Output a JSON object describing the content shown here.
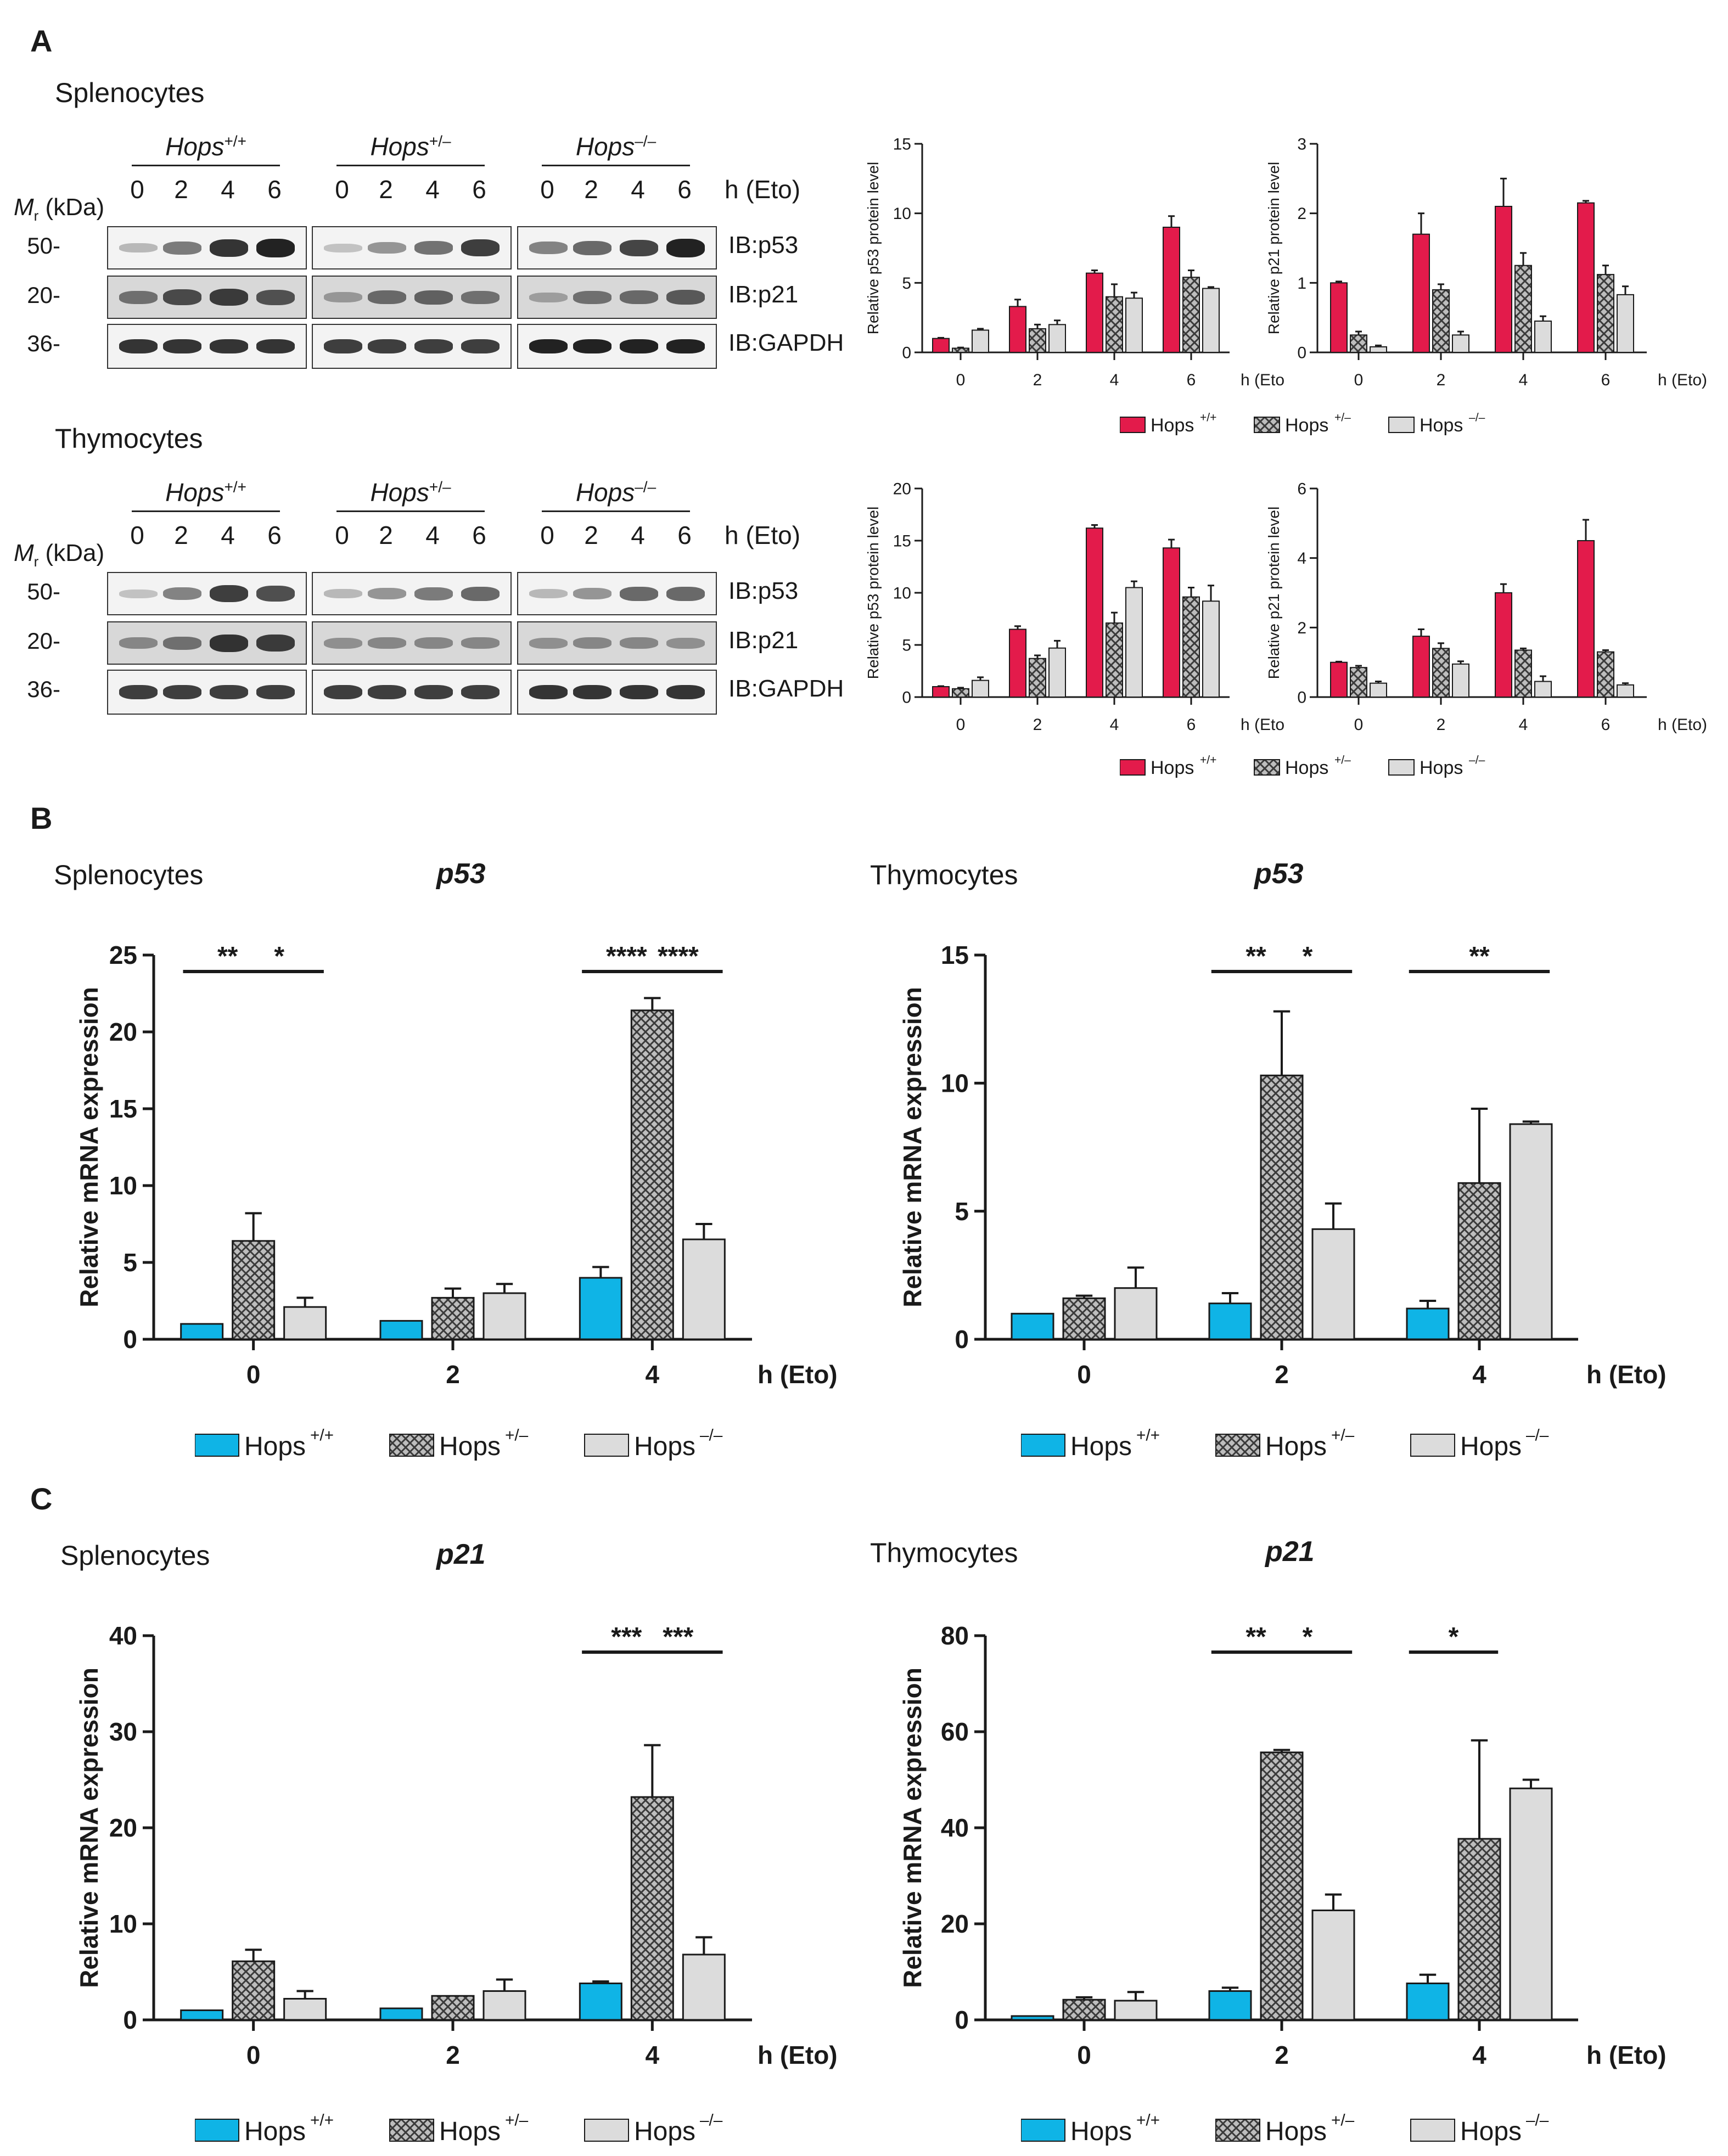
{
  "panels": {
    "A": {
      "letter": "A"
    },
    "B": {
      "letter": "B"
    },
    "C": {
      "letter": "C"
    }
  },
  "blots": {
    "mr_label": "M",
    "mr_sub": "r",
    "mr_unit": " (kDa)",
    "time_unit": "h (Eto)",
    "time_points": [
      "0",
      "2",
      "4",
      "6"
    ],
    "groups": [
      {
        "base": "Hops",
        "sup": "+/+"
      },
      {
        "base": "Hops",
        "sup": "+/–"
      },
      {
        "base": "Hops",
        "sup": "–/–"
      }
    ],
    "rows": [
      {
        "mw": "50-",
        "ib": "IB:p53"
      },
      {
        "mw": "20-",
        "ib": "IB:p21"
      },
      {
        "mw": "36-",
        "ib": "IB:GAPDH"
      }
    ],
    "sections": [
      {
        "title": "Splenocytes"
      },
      {
        "title": "Thymocytes"
      }
    ]
  },
  "legend": {
    "base": "Hops",
    "sups": [
      "+/+",
      "+/–",
      "–/–"
    ]
  },
  "colors": {
    "wt_protein": "#e31b4b",
    "wt_mrna": "#0fb4e6",
    "het": "#9a9a9a",
    "ko": "#dcdcdc",
    "axis": "#1a1a1a"
  },
  "chart_data": [
    {
      "id": "A_spl_p53",
      "type": "bar",
      "title": "",
      "ylabel": "Relative p53 protein level",
      "xlabel": "h (Eto)",
      "categories": [
        "0",
        "2",
        "4",
        "6"
      ],
      "ylim": [
        0,
        15
      ],
      "yticks": [
        0,
        5,
        10,
        15
      ],
      "series": [
        {
          "name": "Hops +/+",
          "values": [
            1.0,
            3.3,
            5.7,
            9.0
          ],
          "errors": [
            0.05,
            0.5,
            0.2,
            0.8
          ]
        },
        {
          "name": "Hops +/–",
          "values": [
            0.3,
            1.7,
            4.0,
            5.4
          ],
          "errors": [
            0.05,
            0.3,
            0.9,
            0.5
          ]
        },
        {
          "name": "Hops –/–",
          "values": [
            1.6,
            2.0,
            3.9,
            4.6
          ],
          "errors": [
            0.1,
            0.3,
            0.4,
            0.1
          ]
        }
      ]
    },
    {
      "id": "A_spl_p21",
      "type": "bar",
      "title": "",
      "ylabel": "Relative p21 protein level",
      "xlabel": "h (Eto)",
      "categories": [
        "0",
        "2",
        "4",
        "6"
      ],
      "ylim": [
        0,
        3
      ],
      "yticks": [
        0,
        1,
        2,
        3
      ],
      "series": [
        {
          "name": "Hops +/+",
          "values": [
            1.0,
            1.7,
            2.1,
            2.15
          ],
          "errors": [
            0.02,
            0.3,
            0.4,
            0.03
          ]
        },
        {
          "name": "Hops +/–",
          "values": [
            0.25,
            0.9,
            1.25,
            1.12
          ],
          "errors": [
            0.05,
            0.08,
            0.18,
            0.13
          ]
        },
        {
          "name": "Hops –/–",
          "values": [
            0.08,
            0.25,
            0.45,
            0.83
          ],
          "errors": [
            0.02,
            0.05,
            0.07,
            0.12
          ]
        }
      ]
    },
    {
      "id": "A_thy_p53",
      "type": "bar",
      "title": "",
      "ylabel": "Relative p53 protein level",
      "xlabel": "h (Eto)",
      "categories": [
        "0",
        "2",
        "4",
        "6"
      ],
      "ylim": [
        0,
        20
      ],
      "yticks": [
        0,
        5,
        10,
        15,
        20
      ],
      "series": [
        {
          "name": "Hops +/+",
          "values": [
            1.0,
            6.5,
            16.2,
            14.3
          ],
          "errors": [
            0.05,
            0.3,
            0.3,
            0.8
          ]
        },
        {
          "name": "Hops +/–",
          "values": [
            0.8,
            3.7,
            7.1,
            9.6
          ],
          "errors": [
            0.1,
            0.3,
            1.0,
            0.9
          ]
        },
        {
          "name": "Hops –/–",
          "values": [
            1.6,
            4.7,
            10.5,
            9.2
          ],
          "errors": [
            0.3,
            0.7,
            0.6,
            1.5
          ]
        }
      ]
    },
    {
      "id": "A_thy_p21",
      "type": "bar",
      "title": "",
      "ylabel": "Relative p21 protein level",
      "xlabel": "h (Eto)",
      "categories": [
        "0",
        "2",
        "4",
        "6"
      ],
      "ylim": [
        0,
        6
      ],
      "yticks": [
        0,
        2,
        4,
        6
      ],
      "series": [
        {
          "name": "Hops +/+",
          "values": [
            1.0,
            1.75,
            3.0,
            4.5
          ],
          "errors": [
            0.02,
            0.2,
            0.25,
            0.6
          ]
        },
        {
          "name": "Hops +/–",
          "values": [
            0.85,
            1.4,
            1.35,
            1.3
          ],
          "errors": [
            0.05,
            0.15,
            0.05,
            0.05
          ]
        },
        {
          "name": "Hops –/–",
          "values": [
            0.4,
            0.95,
            0.45,
            0.35
          ],
          "errors": [
            0.05,
            0.08,
            0.15,
            0.05
          ]
        }
      ]
    },
    {
      "id": "B_spl",
      "type": "bar",
      "title": "p53",
      "section": "Splenocytes",
      "ylabel": "Relative mRNA expression",
      "xlabel": "h (Eto)",
      "categories": [
        "0",
        "2",
        "4"
      ],
      "ylim": [
        0,
        25
      ],
      "yticks": [
        0,
        5,
        10,
        15,
        20,
        25
      ],
      "series": [
        {
          "name": "Hops +/+",
          "values": [
            1.0,
            1.2,
            4.0
          ],
          "errors": [
            0,
            0,
            0.7
          ]
        },
        {
          "name": "Hops +/–",
          "values": [
            6.4,
            2.7,
            21.4
          ],
          "errors": [
            1.8,
            0.6,
            0.8
          ]
        },
        {
          "name": "Hops –/–",
          "values": [
            2.1,
            3.0,
            6.5
          ],
          "errors": [
            0.6,
            0.6,
            1.0
          ]
        }
      ],
      "annotations": [
        {
          "text": "**",
          "from": [
            0,
            0
          ],
          "to": [
            0,
            1
          ]
        },
        {
          "text": "*",
          "from": [
            0,
            1
          ],
          "to": [
            0,
            2
          ]
        },
        {
          "text": "****",
          "from": [
            2,
            0
          ],
          "to": [
            2,
            1
          ]
        },
        {
          "text": "****",
          "from": [
            2,
            1
          ],
          "to": [
            2,
            2
          ]
        }
      ]
    },
    {
      "id": "B_thy",
      "type": "bar",
      "title": "p53",
      "section": "Thymocytes",
      "ylabel": "Relative mRNA expression",
      "xlabel": "h (Eto)",
      "categories": [
        "0",
        "2",
        "4"
      ],
      "ylim": [
        0,
        15
      ],
      "yticks": [
        0,
        5,
        10,
        15
      ],
      "series": [
        {
          "name": "Hops +/+",
          "values": [
            1.0,
            1.4,
            1.2
          ],
          "errors": [
            0,
            0.4,
            0.3
          ]
        },
        {
          "name": "Hops +/–",
          "values": [
            1.6,
            10.3,
            6.1
          ],
          "errors": [
            0.1,
            2.5,
            2.9
          ]
        },
        {
          "name": "Hops –/–",
          "values": [
            2.0,
            4.3,
            8.4
          ],
          "errors": [
            0.8,
            1.0,
            0.1
          ]
        }
      ],
      "annotations": [
        {
          "text": "**",
          "from": [
            1,
            0
          ],
          "to": [
            1,
            1
          ]
        },
        {
          "text": "*",
          "from": [
            1,
            1
          ],
          "to": [
            1,
            2
          ]
        },
        {
          "text": "**",
          "from": [
            2,
            0
          ],
          "to": [
            2,
            2
          ]
        }
      ]
    },
    {
      "id": "C_spl",
      "type": "bar",
      "title": "p21",
      "section": "Splenocytes",
      "ylabel": "Relative mRNA expression",
      "xlabel": "h (Eto)",
      "categories": [
        "0",
        "2",
        "4"
      ],
      "ylim": [
        0,
        40
      ],
      "yticks": [
        0,
        10,
        20,
        30,
        40
      ],
      "series": [
        {
          "name": "Hops +/+",
          "values": [
            1.0,
            1.2,
            3.8
          ],
          "errors": [
            0,
            0,
            0.2
          ]
        },
        {
          "name": "Hops +/–",
          "values": [
            6.1,
            2.5,
            23.2
          ],
          "errors": [
            1.2,
            0,
            5.4
          ]
        },
        {
          "name": "Hops –/–",
          "values": [
            2.2,
            3.0,
            6.8
          ],
          "errors": [
            0.8,
            1.2,
            1.8
          ]
        }
      ],
      "annotations": [
        {
          "text": "***",
          "from": [
            2,
            0
          ],
          "to": [
            2,
            1
          ]
        },
        {
          "text": "***",
          "from": [
            2,
            1
          ],
          "to": [
            2,
            2
          ]
        }
      ]
    },
    {
      "id": "C_thy",
      "type": "bar",
      "title": "p21",
      "section": "Thymocytes",
      "ylabel": "Relative mRNA expression",
      "xlabel": "h (Eto)",
      "categories": [
        "0",
        "2",
        "4"
      ],
      "ylim": [
        0,
        80
      ],
      "yticks": [
        0,
        20,
        40,
        60,
        80
      ],
      "series": [
        {
          "name": "Hops +/+",
          "values": [
            0.8,
            6.0,
            7.6
          ],
          "errors": [
            0,
            0.7,
            1.8
          ]
        },
        {
          "name": "Hops +/–",
          "values": [
            4.2,
            55.7,
            37.7
          ],
          "errors": [
            0.5,
            0.5,
            20.5
          ]
        },
        {
          "name": "Hops –/–",
          "values": [
            4.0,
            22.8,
            48.2
          ],
          "errors": [
            1.8,
            3.3,
            1.8
          ]
        }
      ],
      "annotations": [
        {
          "text": "**",
          "from": [
            1,
            0
          ],
          "to": [
            1,
            1
          ]
        },
        {
          "text": "*",
          "from": [
            1,
            1
          ],
          "to": [
            1,
            2
          ]
        },
        {
          "text": "*",
          "from": [
            2,
            0
          ],
          "to": [
            2,
            1
          ]
        }
      ]
    }
  ]
}
